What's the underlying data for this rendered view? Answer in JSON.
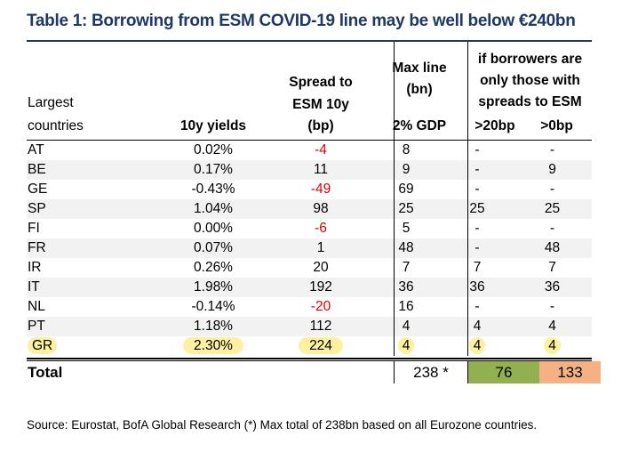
{
  "title": "Table 1: Borrowing from  ESM COVID-19 line may be well below €240bn",
  "header": {
    "largest_line1": "Largest",
    "largest_line2": "countries",
    "yields": "10y yields",
    "spread_line1": "Spread to",
    "spread_line2": "ESM 10y",
    "spread_line3": "(bp)",
    "maxline_line1": "Max line",
    "maxline_line2": "(bn)",
    "maxline_sub": "2% GDP",
    "borrowers_line1": "if borrowers are",
    "borrowers_line2": "only those with",
    "borrowers_line3": "spreads to ESM",
    "gt20": ">20bp",
    "gt0": ">0bp"
  },
  "rows": [
    {
      "country": "AT",
      "yield": "0.02%",
      "spread": "-4",
      "max": "8",
      "gt20": "-",
      "gt0": "-"
    },
    {
      "country": "BE",
      "yield": "0.17%",
      "spread": "11",
      "max": "9",
      "gt20": "-",
      "gt0": "9"
    },
    {
      "country": "GE",
      "yield": "-0.43%",
      "spread": "-49",
      "max": "69",
      "gt20": "-",
      "gt0": "-"
    },
    {
      "country": "SP",
      "yield": "1.04%",
      "spread": "98",
      "max": "25",
      "gt20": "25",
      "gt0": "25"
    },
    {
      "country": "FI",
      "yield": "0.00%",
      "spread": "-6",
      "max": "5",
      "gt20": "-",
      "gt0": "-"
    },
    {
      "country": "FR",
      "yield": "0.07%",
      "spread": "1",
      "max": "48",
      "gt20": "-",
      "gt0": "48"
    },
    {
      "country": "IR",
      "yield": "0.26%",
      "spread": "20",
      "max": "7",
      "gt20": "7",
      "gt0": "7"
    },
    {
      "country": "IT",
      "yield": "1.98%",
      "spread": "192",
      "max": "36",
      "gt20": "36",
      "gt0": "36"
    },
    {
      "country": "NL",
      "yield": "-0.14%",
      "spread": "-20",
      "max": "16",
      "gt20": "-",
      "gt0": "-"
    },
    {
      "country": "PT",
      "yield": "1.18%",
      "spread": "112",
      "max": "4",
      "gt20": "4",
      "gt0": "4"
    },
    {
      "country": "GR",
      "yield": "2.30%",
      "spread": "224",
      "max": "4",
      "gt20": "4",
      "gt0": "4"
    }
  ],
  "total": {
    "label": "Total",
    "max": "238 *",
    "gt20": "76",
    "gt0": "133"
  },
  "source": "Source: Eurostat, BofA Global Research (*) Max total of 238bn based on all Eurozone countries.",
  "colors": {
    "title": "#1f3864",
    "negative": "#e00000",
    "highlight": "#fdf0a0",
    "green": "#92b050",
    "orange": "#f4b183"
  }
}
